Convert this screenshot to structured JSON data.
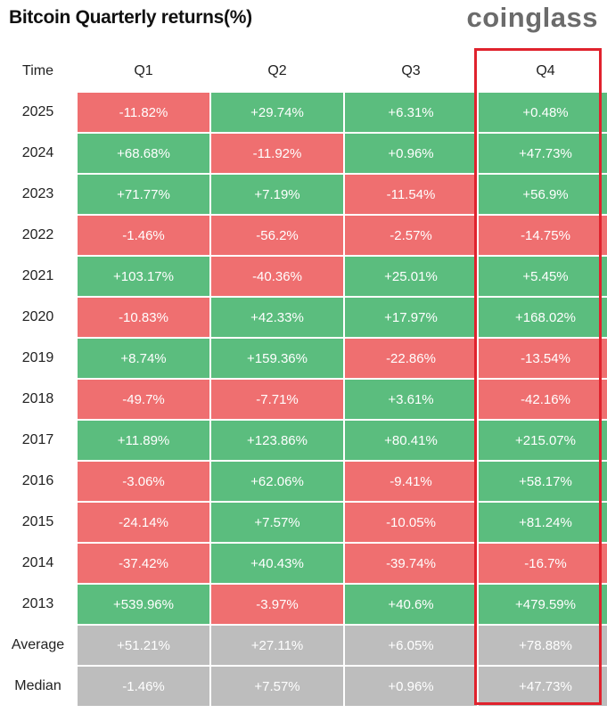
{
  "title": "Bitcoin Quarterly returns(%)",
  "brand": "coinglass",
  "colors": {
    "positive": "#5bbd7e",
    "negative": "#ef6f70",
    "summary": "#bdbdbd",
    "highlight": "#e0222d"
  },
  "chart_data": {
    "type": "table",
    "title": "Bitcoin Quarterly returns(%)",
    "columns": [
      "Time",
      "Q1",
      "Q2",
      "Q3",
      "Q4"
    ],
    "rows": [
      {
        "label": "2025",
        "values": [
          "-11.82%",
          "+29.74%",
          "+6.31%",
          "+0.48%"
        ]
      },
      {
        "label": "2024",
        "values": [
          "+68.68%",
          "-11.92%",
          "+0.96%",
          "+47.73%"
        ]
      },
      {
        "label": "2023",
        "values": [
          "+71.77%",
          "+7.19%",
          "-11.54%",
          "+56.9%"
        ]
      },
      {
        "label": "2022",
        "values": [
          "-1.46%",
          "-56.2%",
          "-2.57%",
          "-14.75%"
        ]
      },
      {
        "label": "2021",
        "values": [
          "+103.17%",
          "-40.36%",
          "+25.01%",
          "+5.45%"
        ]
      },
      {
        "label": "2020",
        "values": [
          "-10.83%",
          "+42.33%",
          "+17.97%",
          "+168.02%"
        ]
      },
      {
        "label": "2019",
        "values": [
          "+8.74%",
          "+159.36%",
          "-22.86%",
          "-13.54%"
        ]
      },
      {
        "label": "2018",
        "values": [
          "-49.7%",
          "-7.71%",
          "+3.61%",
          "-42.16%"
        ]
      },
      {
        "label": "2017",
        "values": [
          "+11.89%",
          "+123.86%",
          "+80.41%",
          "+215.07%"
        ]
      },
      {
        "label": "2016",
        "values": [
          "-3.06%",
          "+62.06%",
          "-9.41%",
          "+58.17%"
        ]
      },
      {
        "label": "2015",
        "values": [
          "-24.14%",
          "+7.57%",
          "-10.05%",
          "+81.24%"
        ]
      },
      {
        "label": "2014",
        "values": [
          "-37.42%",
          "+40.43%",
          "-39.74%",
          "-16.7%"
        ]
      },
      {
        "label": "2013",
        "values": [
          "+539.96%",
          "-3.97%",
          "+40.6%",
          "+479.59%"
        ]
      }
    ],
    "summary_rows": [
      {
        "label": "Average",
        "values": [
          "+51.21%",
          "+27.11%",
          "+6.05%",
          "+78.88%"
        ]
      },
      {
        "label": "Median",
        "values": [
          "-1.46%",
          "+7.57%",
          "+0.96%",
          "+47.73%"
        ]
      }
    ],
    "highlighted_column": "Q4"
  }
}
